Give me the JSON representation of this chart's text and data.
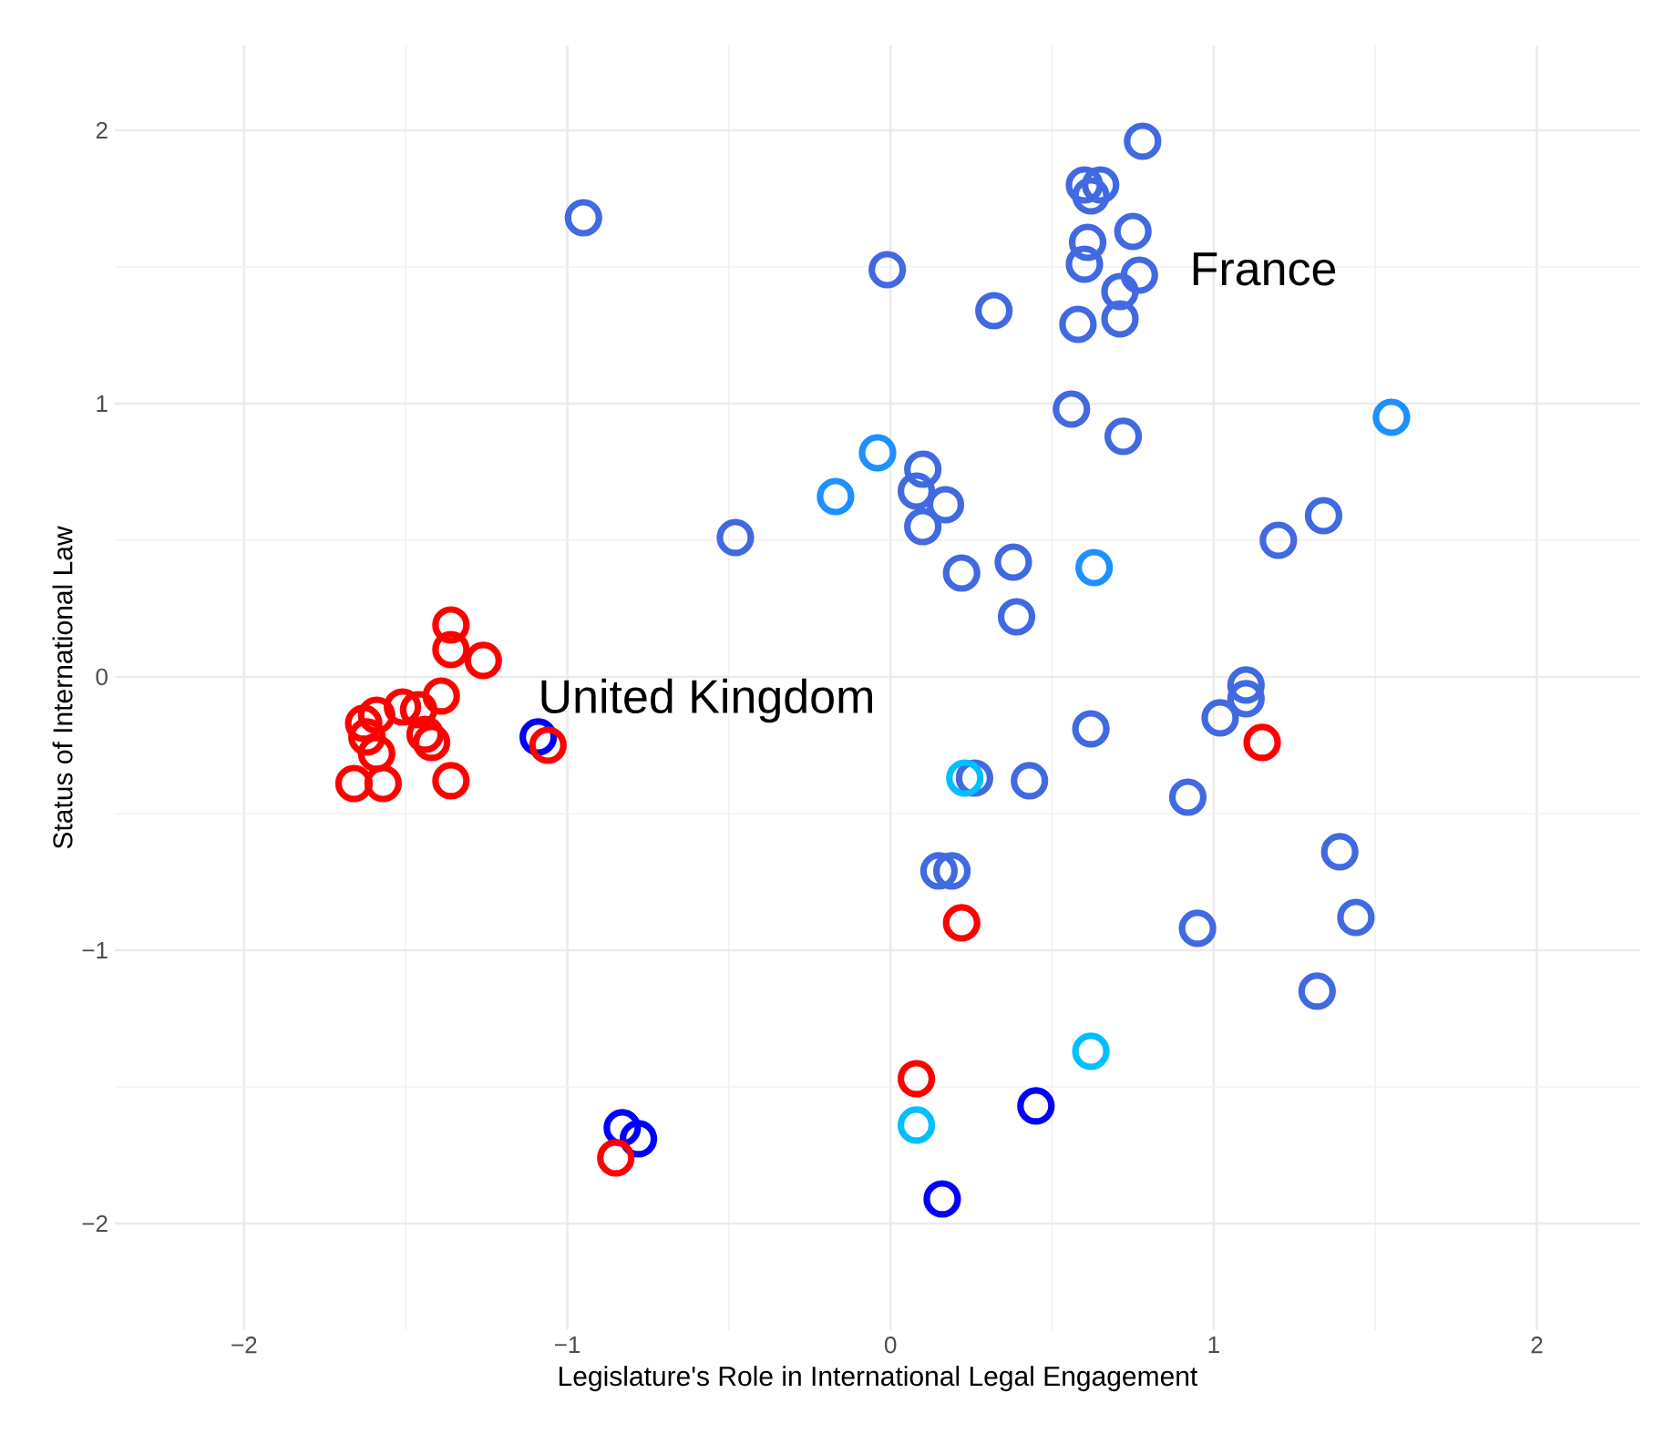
{
  "chart_data": {
    "type": "scatter",
    "xlabel": "Legislature's Role in International Legal Engagement",
    "ylabel": "Status of International Law",
    "xlim": [
      -2.4,
      2.32
    ],
    "ylim": [
      -2.39,
      2.31
    ],
    "xticks": [
      {
        "value": -2,
        "label": "−2"
      },
      {
        "value": -1,
        "label": "−1"
      },
      0,
      1,
      2
    ],
    "yticks": [
      {
        "value": -2,
        "label": "−2"
      },
      {
        "value": -1,
        "label": "−1"
      },
      0,
      1,
      2
    ],
    "grid": true,
    "marker": "circle",
    "series": [
      {
        "color": "#4169e1",
        "x": [
          -0.95,
          -0.01,
          -0.48,
          0.78,
          0.6,
          0.65,
          0.62,
          0.75,
          0.61,
          0.6,
          0.77,
          0.71,
          0.71,
          0.58,
          0.32,
          0.56,
          0.72,
          0.1,
          0.08,
          0.17,
          0.1,
          0.22,
          0.38,
          0.39,
          1.2,
          1.34,
          1.1,
          1.1,
          1.02,
          0.62,
          0.43,
          0.92,
          1.39,
          1.44,
          0.95,
          1.32,
          0.15,
          0.19,
          0.26
        ],
        "values": [
          1.68,
          1.49,
          0.51,
          1.96,
          1.8,
          1.8,
          1.76,
          1.63,
          1.59,
          1.51,
          1.47,
          1.41,
          1.31,
          1.29,
          1.34,
          0.98,
          0.88,
          0.76,
          0.68,
          0.63,
          0.55,
          0.38,
          0.42,
          0.22,
          0.5,
          0.59,
          -0.03,
          -0.08,
          -0.15,
          -0.19,
          -0.38,
          -0.44,
          -0.64,
          -0.88,
          -0.92,
          -1.15,
          -0.71,
          -0.71,
          -0.37
        ]
      },
      {
        "color": "#1e90ff",
        "x": [
          -0.04,
          -0.17,
          0.63,
          1.55
        ],
        "values": [
          0.82,
          0.66,
          0.4,
          0.95
        ]
      },
      {
        "color": "#00bfff",
        "x": [
          0.62,
          0.08,
          0.23
        ],
        "values": [
          -1.37,
          -1.64,
          -0.37
        ]
      },
      {
        "color": "#0000ff",
        "x": [
          -0.83,
          -0.78,
          0.45,
          0.16,
          -1.09
        ],
        "values": [
          -1.65,
          -1.69,
          -1.57,
          -1.91,
          -0.22
        ]
      },
      {
        "color": "#ff0000",
        "x": [
          1.15,
          0.22,
          0.08,
          -0.85,
          -1.06,
          -1.36,
          -1.36,
          -1.26,
          -1.39,
          -1.46,
          -1.51,
          -1.59,
          -1.63,
          -1.62,
          -1.42,
          -1.44,
          -1.59,
          -1.66,
          -1.57,
          -1.36
        ],
        "values": [
          -0.24,
          -0.9,
          -1.47,
          -1.76,
          -0.25,
          0.19,
          0.1,
          0.06,
          -0.07,
          -0.12,
          -0.11,
          -0.14,
          -0.17,
          -0.22,
          -0.24,
          -0.21,
          -0.28,
          -0.39,
          -0.39,
          -0.38
        ]
      }
    ],
    "annotations": [
      "France",
      "United Kingdom"
    ]
  }
}
